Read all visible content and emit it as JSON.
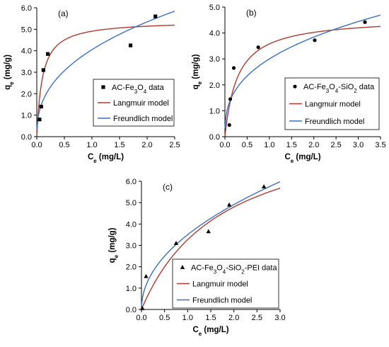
{
  "chart_data": [
    {
      "type": "scatter",
      "panel_label": "(a)",
      "xlabel_main": "C",
      "xlabel_sub": "e",
      "xlabel_unit": " (mg/L)",
      "ylabel_main": "q",
      "ylabel_sub": "e",
      "ylabel_unit": " (mg/g)",
      "xlim": [
        0,
        2.5
      ],
      "ylim": [
        0,
        6.0
      ],
      "xticks": [
        "0.0",
        "0.5",
        "1.0",
        "1.5",
        "2.0",
        "2.5"
      ],
      "yticks": [
        "0.0",
        "1.0",
        "2.0",
        "3.0",
        "4.0",
        "5.0",
        "6.0"
      ],
      "legend_position": "center-right",
      "series": [
        {
          "kind": "points",
          "marker": "square",
          "legend_parts": [
            [
              "AC-Fe",
              ""
            ],
            [
              "3",
              "sub"
            ],
            [
              "O",
              ""
            ],
            [
              "4",
              "sub"
            ],
            [
              " data",
              ""
            ]
          ],
          "x": [
            0.05,
            0.08,
            0.12,
            0.2,
            1.7,
            2.15
          ],
          "y": [
            0.8,
            1.4,
            3.1,
            3.85,
            4.25,
            5.6
          ]
        },
        {
          "kind": "langmuir",
          "legend": "Langmuir model",
          "color": "#b03a2e",
          "qmax": 5.4,
          "k": 10
        },
        {
          "kind": "freundlich",
          "legend": "Freundlich model",
          "color": "#3a6fc4",
          "kf": 4.05,
          "n": 2.5
        }
      ]
    },
    {
      "type": "scatter",
      "panel_label": "(b)",
      "xlabel_main": "C",
      "xlabel_sub": "e",
      "xlabel_unit": " (mg/L)",
      "ylabel_main": "q",
      "ylabel_sub": "e",
      "ylabel_unit": " (mg/g)",
      "xlim": [
        0,
        3.5
      ],
      "ylim": [
        0,
        5.0
      ],
      "xticks": [
        "0.0",
        "0.5",
        "1.0",
        "1.5",
        "2.0",
        "2.5",
        "3.0",
        "3.5"
      ],
      "yticks": [
        "0.0",
        "1.0",
        "2.0",
        "3.0",
        "4.0",
        "5.0"
      ],
      "legend_position": "center-right",
      "series": [
        {
          "kind": "points",
          "marker": "circle",
          "legend_parts": [
            [
              "AC-Fe",
              ""
            ],
            [
              "3",
              "sub"
            ],
            [
              "O",
              ""
            ],
            [
              "4",
              "sub"
            ],
            [
              "-SiO",
              ""
            ],
            [
              "2",
              "sub"
            ],
            [
              " data",
              ""
            ]
          ],
          "x": [
            0.1,
            0.12,
            0.2,
            0.75,
            2.02,
            3.15
          ],
          "y": [
            0.45,
            1.45,
            2.65,
            3.45,
            3.72,
            4.42
          ]
        },
        {
          "kind": "langmuir",
          "legend": "Langmuir model",
          "color": "#b03a2e",
          "qmax": 4.6,
          "k": 3.5
        },
        {
          "kind": "freundlich",
          "legend": "Freundlich model",
          "color": "#3a6fc4",
          "kf": 3.0,
          "n": 2.8
        }
      ]
    },
    {
      "type": "scatter",
      "panel_label": "(c)",
      "xlabel_main": "C",
      "xlabel_sub": "e",
      "xlabel_unit": " (mg/L)",
      "ylabel_main": "q",
      "ylabel_sub": "e",
      "ylabel_unit": " (mg/g)",
      "xlim": [
        0,
        3.0
      ],
      "ylim": [
        0,
        6.0
      ],
      "xticks": [
        "0.0",
        "0.5",
        "1.0",
        "1.5",
        "2.0",
        "2.5",
        "3.0"
      ],
      "yticks": [
        "0.0",
        "1.0",
        "2.0",
        "3.0",
        "4.0",
        "5.0",
        "6.0"
      ],
      "legend_position": "center-left",
      "series": [
        {
          "kind": "points",
          "marker": "triangle",
          "legend_parts": [
            [
              "AC-Fe",
              ""
            ],
            [
              "3",
              "sub"
            ],
            [
              "O",
              ""
            ],
            [
              "4",
              "sub"
            ],
            [
              "-SiO",
              ""
            ],
            [
              "2",
              "sub"
            ],
            [
              "-PEI data",
              ""
            ]
          ],
          "x": [
            0.02,
            0.1,
            0.75,
            1.45,
            1.9,
            2.65
          ],
          "y": [
            0.05,
            1.55,
            3.1,
            3.65,
            4.9,
            5.75
          ]
        },
        {
          "kind": "langmuir",
          "legend": "Langmuir model",
          "color": "#b03a2e",
          "qmax": 9.0,
          "k": 0.57
        },
        {
          "kind": "freundlich",
          "legend": "Freundlich model",
          "color": "#3a6fc4",
          "kf": 3.5,
          "n": 2.05
        }
      ]
    }
  ]
}
